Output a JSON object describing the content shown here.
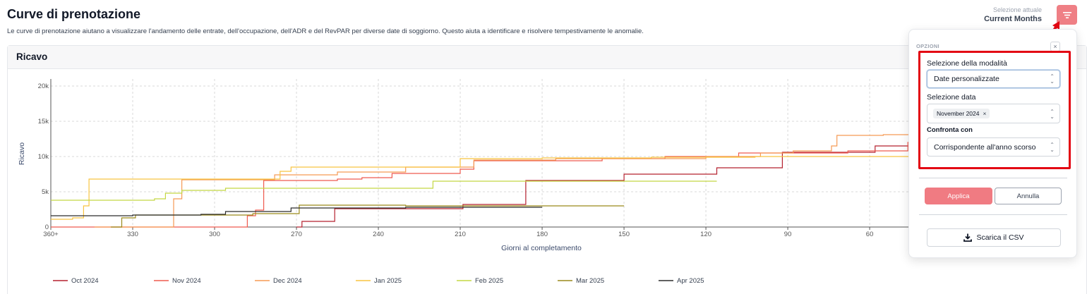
{
  "page": {
    "title": "Curve di prenotazione",
    "description": "Le curve di prenotazione aiutano a visualizzare l'andamento delle entrate, dell'occupazione, dell'ADR e del RevPAR per diverse date di soggiorno. Questo aiuta a identificare e risolvere tempestivamente le anomalie."
  },
  "selection": {
    "label": "Selezione attuale",
    "value": "Current Months"
  },
  "filter_button": {
    "icon": "filter-lines-icon"
  },
  "card": {
    "title": "Ricavo"
  },
  "chart_data": {
    "type": "line",
    "title": "Ricavo",
    "xlabel": "Giorni al completamento",
    "ylabel": "Ricavo",
    "x_ticks": [
      "360+",
      "330",
      "300",
      "270",
      "240",
      "210",
      "180",
      "150",
      "120",
      "90",
      "60"
    ],
    "y_ticks": [
      "0",
      "5k",
      "10k",
      "15k",
      "20k"
    ],
    "xlim": [
      360,
      0
    ],
    "ylim": [
      0,
      20000
    ],
    "x_reversed": true,
    "grid": true,
    "legend_position": "bottom",
    "series": [
      {
        "name": "Oct 2024",
        "color": "#b5212f",
        "points": [
          [
            270,
            0
          ],
          [
            268,
            800
          ],
          [
            256,
            2600
          ],
          [
            209,
            3200
          ],
          [
            186,
            6600
          ],
          [
            150,
            7500
          ],
          [
            116,
            8400
          ],
          [
            92,
            10600
          ],
          [
            58,
            11500
          ],
          [
            -10,
            11500
          ]
        ]
      },
      {
        "name": "Nov 2024",
        "color": "#ef5b4f",
        "points": [
          [
            360,
            0
          ],
          [
            294,
            0
          ],
          [
            288,
            1600
          ],
          [
            285,
            2400
          ],
          [
            282,
            6600
          ],
          [
            255,
            6800
          ],
          [
            246,
            7000
          ],
          [
            235,
            7600
          ],
          [
            210,
            8200
          ],
          [
            205,
            9400
          ],
          [
            158,
            9700
          ],
          [
            135,
            10000
          ],
          [
            108,
            10500
          ],
          [
            68,
            10800
          ],
          [
            46,
            12000
          ],
          [
            22,
            13000
          ],
          [
            -10,
            13000
          ]
        ]
      },
      {
        "name": "Dec 2024",
        "color": "#f59a54",
        "points": [
          [
            344,
            0
          ],
          [
            315,
            4000
          ],
          [
            312,
            6700
          ],
          [
            278,
            7400
          ],
          [
            255,
            7800
          ],
          [
            230,
            8500
          ],
          [
            205,
            9500
          ],
          [
            175,
            9700
          ],
          [
            120,
            10000
          ],
          [
            100,
            10500
          ],
          [
            88,
            10800
          ],
          [
            74,
            11500
          ],
          [
            72,
            13000
          ],
          [
            55,
            13100
          ],
          [
            -10,
            13100
          ]
        ]
      },
      {
        "name": "Jan 2025",
        "color": "#f8c441",
        "points": [
          [
            360,
            1100
          ],
          [
            352,
            1300
          ],
          [
            348,
            3000
          ],
          [
            346,
            6800
          ],
          [
            305,
            6800
          ],
          [
            276,
            7900
          ],
          [
            272,
            8500
          ],
          [
            240,
            8500
          ],
          [
            210,
            9700
          ],
          [
            180,
            9800
          ],
          [
            140,
            9900
          ],
          [
            102,
            10000
          ],
          [
            -10,
            10000
          ]
        ]
      },
      {
        "name": "Feb 2025",
        "color": "#c4d843",
        "points": [
          [
            360,
            3800
          ],
          [
            350,
            3800
          ],
          [
            322,
            4000
          ],
          [
            318,
            4800
          ],
          [
            312,
            5200
          ],
          [
            296,
            5500
          ],
          [
            269,
            5500
          ],
          [
            238,
            5500
          ],
          [
            220,
            6500
          ],
          [
            200,
            6500
          ],
          [
            120,
            6500
          ],
          [
            116,
            6500
          ]
        ]
      },
      {
        "name": "Mar 2025",
        "color": "#9a8a1b",
        "points": [
          [
            338,
            0
          ],
          [
            334,
            1300
          ],
          [
            330,
            1300
          ],
          [
            329,
            1700
          ],
          [
            290,
            1700
          ],
          [
            286,
            1900
          ],
          [
            269,
            3100
          ],
          [
            230,
            3000
          ],
          [
            180,
            3000
          ],
          [
            150,
            3000
          ]
        ]
      },
      {
        "name": "Apr 2025",
        "color": "#2b2b2b",
        "points": [
          [
            360,
            1600
          ],
          [
            330,
            1700
          ],
          [
            305,
            1800
          ],
          [
            296,
            2200
          ],
          [
            272,
            2700
          ],
          [
            230,
            2800
          ],
          [
            180,
            2800
          ]
        ]
      }
    ]
  },
  "options_panel": {
    "section_label": "OPZIONI",
    "close_icon": "close-icon",
    "mode_label": "Selezione della modalità",
    "mode_value": "Date personalizzate",
    "date_label": "Selezione data",
    "date_chip": "November 2024",
    "compare_label": "Confronta con",
    "compare_value": "Corrispondente all'anno scorso",
    "apply_label": "Applica",
    "cancel_label": "Annulla",
    "csv_label": "Scarica il CSV",
    "csv_icon": "download-icon"
  }
}
